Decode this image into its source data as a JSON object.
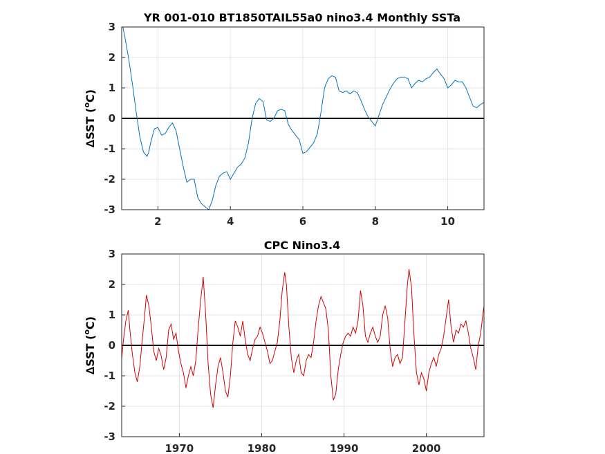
{
  "chart_data": [
    {
      "type": "line",
      "title": "YR 001-010 BT1850TAIL55a0 nino3.4 Monthly SSTa",
      "ylabel": "∆SST (°C)",
      "ylabel_parts": {
        "prefix": "∆SST (",
        "sup": "o",
        "suffix": "C)"
      },
      "xlim": [
        1,
        11
      ],
      "ylim": [
        -3,
        3
      ],
      "xticks": [
        2,
        4,
        6,
        8,
        10
      ],
      "yticks": [
        -3,
        -2,
        -1,
        0,
        1,
        2,
        3
      ],
      "grid": true,
      "zero_line": 0,
      "color": "#0072BD",
      "series": [
        {
          "x": [
            1.0,
            1.1,
            1.2,
            1.3,
            1.4,
            1.5,
            1.6,
            1.7,
            1.75,
            1.8,
            1.9,
            2.0,
            2.1,
            2.2,
            2.3,
            2.4,
            2.5,
            2.6,
            2.7,
            2.8,
            2.9,
            3.0,
            3.1,
            3.2,
            3.3,
            3.4,
            3.5,
            3.6,
            3.7,
            3.8,
            3.9,
            4.0,
            4.1,
            4.2,
            4.3,
            4.4,
            4.5,
            4.6,
            4.7,
            4.8,
            4.9,
            5.0,
            5.1,
            5.2,
            5.3,
            5.4,
            5.5,
            5.6,
            5.7,
            5.8,
            5.9,
            6.0,
            6.1,
            6.2,
            6.3,
            6.4,
            6.5,
            6.6,
            6.7,
            6.8,
            6.9,
            7.0,
            7.1,
            7.2,
            7.3,
            7.4,
            7.5,
            7.6,
            7.7,
            7.8,
            7.9,
            8.0,
            8.1,
            8.2,
            8.3,
            8.4,
            8.5,
            8.6,
            8.7,
            8.8,
            8.9,
            9.0,
            9.1,
            9.2,
            9.3,
            9.4,
            9.5,
            9.6,
            9.7,
            9.8,
            9.9,
            10.0,
            10.1,
            10.2,
            10.3,
            10.4,
            10.5,
            10.6,
            10.7,
            10.8,
            10.9,
            11.0
          ],
          "values": [
            3.2,
            2.6,
            1.9,
            1.1,
            0.2,
            -0.6,
            -1.1,
            -1.25,
            -1.1,
            -0.8,
            -0.35,
            -0.3,
            -0.55,
            -0.5,
            -0.3,
            -0.15,
            -0.4,
            -1.0,
            -1.6,
            -2.1,
            -2.0,
            -2.0,
            -2.6,
            -2.8,
            -2.9,
            -3.0,
            -2.7,
            -2.2,
            -1.9,
            -1.8,
            -1.75,
            -2.0,
            -1.8,
            -1.6,
            -1.5,
            -1.3,
            -0.8,
            0.0,
            0.5,
            0.65,
            0.55,
            -0.05,
            -0.1,
            0.0,
            0.25,
            0.3,
            0.25,
            -0.2,
            -0.4,
            -0.55,
            -0.7,
            -1.15,
            -1.1,
            -0.95,
            -0.8,
            -0.5,
            0.2,
            1.0,
            1.3,
            1.4,
            1.35,
            0.9,
            0.85,
            0.9,
            0.8,
            0.9,
            0.85,
            0.6,
            0.3,
            0.05,
            -0.1,
            -0.25,
            0.1,
            0.45,
            0.7,
            0.95,
            1.15,
            1.3,
            1.35,
            1.35,
            1.3,
            1.0,
            1.15,
            1.25,
            1.2,
            1.3,
            1.35,
            1.5,
            1.62,
            1.45,
            1.3,
            1.0,
            1.1,
            1.25,
            1.2,
            1.2,
            1.0,
            0.7,
            0.4,
            0.35,
            0.45,
            0.52
          ]
        }
      ]
    },
    {
      "type": "line",
      "title": "CPC Nino3.4",
      "ylabel": "∆SST (°C)",
      "ylabel_parts": {
        "prefix": "∆SST (",
        "sup": "o",
        "suffix": "C)"
      },
      "xlim": [
        1963,
        2007
      ],
      "ylim": [
        -3,
        3
      ],
      "xticks": [
        1970,
        1980,
        1990,
        2000
      ],
      "yticks": [
        -3,
        -2,
        -1,
        0,
        1,
        2,
        3
      ],
      "grid": true,
      "zero_line": 0,
      "color": "#d40000",
      "series": [
        {
          "x": [
            1963.0,
            1963.2,
            1963.5,
            1963.8,
            1964.0,
            1964.3,
            1964.6,
            1964.9,
            1965.2,
            1965.5,
            1965.8,
            1966.0,
            1966.3,
            1966.6,
            1966.9,
            1967.2,
            1967.5,
            1967.8,
            1968.1,
            1968.4,
            1968.7,
            1969.0,
            1969.3,
            1969.6,
            1969.9,
            1970.2,
            1970.5,
            1970.8,
            1971.1,
            1971.4,
            1971.7,
            1972.0,
            1972.3,
            1972.6,
            1972.9,
            1973.2,
            1973.5,
            1973.8,
            1974.1,
            1974.4,
            1974.7,
            1975.0,
            1975.3,
            1975.6,
            1975.9,
            1976.2,
            1976.5,
            1976.8,
            1977.1,
            1977.4,
            1977.7,
            1978.0,
            1978.3,
            1978.6,
            1978.9,
            1979.2,
            1979.5,
            1979.8,
            1980.1,
            1980.4,
            1980.7,
            1981.0,
            1981.3,
            1981.6,
            1981.9,
            1982.2,
            1982.5,
            1982.8,
            1983.0,
            1983.3,
            1983.6,
            1983.9,
            1984.2,
            1984.5,
            1984.8,
            1985.1,
            1985.4,
            1985.7,
            1986.0,
            1986.3,
            1986.6,
            1986.9,
            1987.2,
            1987.5,
            1987.8,
            1988.1,
            1988.4,
            1988.7,
            1989.0,
            1989.3,
            1989.6,
            1989.9,
            1990.2,
            1990.5,
            1990.8,
            1991.1,
            1991.4,
            1991.7,
            1992.0,
            1992.3,
            1992.6,
            1992.9,
            1993.2,
            1993.5,
            1993.8,
            1994.1,
            1994.4,
            1994.7,
            1995.0,
            1995.3,
            1995.6,
            1995.9,
            1996.2,
            1996.5,
            1996.8,
            1997.1,
            1997.4,
            1997.7,
            1997.9,
            1998.2,
            1998.5,
            1998.8,
            1999.1,
            1999.4,
            1999.7,
            2000.0,
            2000.3,
            2000.6,
            2000.9,
            2001.2,
            2001.5,
            2001.8,
            2002.1,
            2002.4,
            2002.7,
            2003.0,
            2003.3,
            2003.6,
            2003.9,
            2004.2,
            2004.5,
            2004.8,
            2005.1,
            2005.4,
            2005.7,
            2006.0,
            2006.3,
            2006.6,
            2006.9,
            2007.0
          ],
          "values": [
            -0.45,
            0.15,
            0.8,
            1.15,
            0.5,
            -0.3,
            -0.9,
            -1.2,
            -0.7,
            0.2,
            1.0,
            1.65,
            1.3,
            0.6,
            -0.2,
            -0.5,
            -0.1,
            -0.35,
            -0.8,
            -0.4,
            0.5,
            0.7,
            0.2,
            0.4,
            -0.2,
            -0.6,
            -0.9,
            -1.4,
            -1.0,
            -0.7,
            -1.0,
            -0.5,
            0.6,
            1.5,
            2.25,
            1.0,
            -0.6,
            -1.6,
            -2.05,
            -1.3,
            -0.7,
            -0.4,
            -0.9,
            -1.5,
            -1.7,
            -1.0,
            0.1,
            0.8,
            0.6,
            0.3,
            0.8,
            0.2,
            -0.3,
            -0.5,
            -0.1,
            0.2,
            0.3,
            0.6,
            0.4,
            0.1,
            -0.2,
            -0.6,
            -0.5,
            -0.2,
            0.1,
            0.8,
            1.8,
            2.4,
            2.0,
            0.6,
            -0.4,
            -0.9,
            -0.5,
            -0.3,
            -0.9,
            -1.0,
            -0.5,
            -0.3,
            -0.4,
            0.1,
            0.8,
            1.3,
            1.6,
            1.4,
            1.2,
            0.5,
            -1.0,
            -1.8,
            -1.6,
            -0.8,
            -0.3,
            0.1,
            0.3,
            0.4,
            0.3,
            0.6,
            0.4,
            0.8,
            1.8,
            1.3,
            0.3,
            0.1,
            0.4,
            0.6,
            0.3,
            0.1,
            0.3,
            1.0,
            1.3,
            0.9,
            -0.1,
            -0.7,
            -0.4,
            -0.3,
            -0.6,
            -0.4,
            0.8,
            2.0,
            2.5,
            1.9,
            0.3,
            -0.9,
            -1.3,
            -0.9,
            -1.1,
            -1.5,
            -0.9,
            -0.6,
            -0.4,
            -0.7,
            -0.3,
            -0.1,
            0.3,
            0.9,
            1.5,
            0.6,
            0.1,
            0.5,
            0.4,
            0.7,
            0.6,
            0.8,
            0.4,
            -0.1,
            -0.4,
            -0.8,
            0.0,
            0.4,
            1.1,
            1.3
          ]
        }
      ]
    }
  ]
}
